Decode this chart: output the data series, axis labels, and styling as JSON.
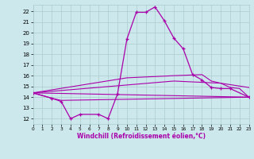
{
  "xlabel": "Windchill (Refroidissement éolien,°C)",
  "background_color": "#cce8ec",
  "grid_color": "#aacccc",
  "line_color": "#aa00aa",
  "hours": [
    0,
    1,
    2,
    3,
    4,
    5,
    6,
    7,
    8,
    9,
    10,
    11,
    12,
    13,
    14,
    15,
    16,
    17,
    18,
    19,
    20,
    21,
    22,
    23
  ],
  "series_main": [
    14.4,
    null,
    13.9,
    13.6,
    12.0,
    12.4,
    null,
    12.4,
    12.0,
    14.3,
    19.4,
    21.9,
    21.9,
    22.4,
    21.1,
    19.5,
    18.5,
    16.1,
    15.6,
    14.9,
    14.8,
    14.8,
    null,
    14.0
  ],
  "series_line1_x": [
    0,
    23
  ],
  "series_line1_y": [
    14.4,
    14.0
  ],
  "series_line2_x": [
    0,
    2,
    3,
    23
  ],
  "series_line2_y": [
    14.4,
    13.9,
    13.7,
    14.0
  ],
  "series_line3_x": [
    0,
    15,
    20,
    23
  ],
  "series_line3_y": [
    14.4,
    15.5,
    15.3,
    14.9
  ],
  "series_line4_x": [
    0,
    10,
    15,
    18,
    19,
    20,
    21,
    22,
    23
  ],
  "series_line4_y": [
    14.4,
    15.8,
    16.0,
    16.1,
    15.5,
    15.3,
    14.9,
    14.8,
    14.0
  ],
  "ylim": [
    11.5,
    22.6
  ],
  "yticks": [
    12,
    13,
    14,
    15,
    16,
    17,
    18,
    19,
    20,
    21,
    22
  ],
  "xlim": [
    0,
    23
  ]
}
